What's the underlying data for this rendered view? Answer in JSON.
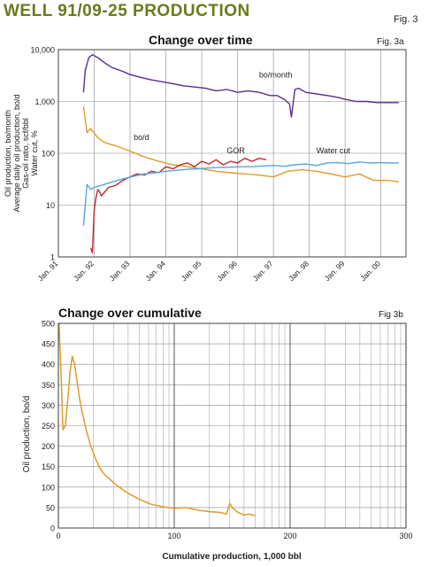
{
  "figure": {
    "title": "WELL 91/09-25 PRODUCTION",
    "fig_label": "Fig. 3",
    "colors": {
      "title": "#6b7a1c"
    }
  },
  "chart_data": [
    {
      "id": "fig3a",
      "type": "line",
      "title": "Change over time",
      "fig_label": "Fig. 3a",
      "ylabel_lines": [
        "Oil production, bo/month",
        "Average daily oil production, bo/d",
        "Gas-oil ratio, scf/bbl",
        "Water cut, %"
      ],
      "xlabel": "",
      "yscale": "log",
      "ylim": [
        1,
        10000
      ],
      "ytick_labels": [
        "1",
        "10",
        "100",
        "1,000",
        "10,000"
      ],
      "ytick_values": [
        1,
        10,
        100,
        1000,
        10000
      ],
      "xlim": [
        1991.0,
        2000.7
      ],
      "xtick_labels": [
        "Jan. 91",
        "Jan. 92",
        "Jan. 93",
        "Jan. 94",
        "Jan. 95",
        "Jan. 96",
        "Jan. 97",
        "Jan. 98",
        "Jan. 99",
        "Jan. 00"
      ],
      "xtick_values": [
        1991,
        1992,
        1993,
        1994,
        1995,
        1996,
        1997,
        1998,
        1999,
        2000
      ],
      "grid": true,
      "annotations": [
        {
          "text": "bo/month",
          "series": "bo/month",
          "x": 1996.6,
          "y": 2900
        },
        {
          "text": "bo/d",
          "series": "bo/d",
          "x": 1993.1,
          "y": 180
        },
        {
          "text": "GOR",
          "series": "GOR",
          "x": 1995.7,
          "y": 100
        },
        {
          "text": "Water cut",
          "series": "Water cut",
          "x": 1998.2,
          "y": 100
        }
      ],
      "series": [
        {
          "name": "bo/month",
          "color": "#5a2d91",
          "x": [
            1991.7,
            1991.75,
            1991.85,
            1991.95,
            1992.1,
            1992.3,
            1992.5,
            1992.8,
            1993.0,
            1993.3,
            1993.6,
            1993.9,
            1994.2,
            1994.5,
            1994.8,
            1995.1,
            1995.4,
            1995.7,
            1996.0,
            1996.3,
            1996.6,
            1996.9,
            1997.1,
            1997.3,
            1997.45,
            1997.5,
            1997.6,
            1997.7,
            1997.9,
            1998.2,
            1998.5,
            1998.8,
            1999.0,
            1999.3,
            1999.6,
            1999.9,
            2000.2,
            2000.5
          ],
          "y": [
            1500,
            4000,
            7000,
            8000,
            7000,
            5500,
            4500,
            3800,
            3300,
            2900,
            2600,
            2400,
            2200,
            2000,
            1900,
            1800,
            1600,
            1700,
            1500,
            1600,
            1500,
            1300,
            1300,
            1100,
            900,
            500,
            1700,
            1800,
            1500,
            1400,
            1300,
            1200,
            1100,
            1000,
            1000,
            950,
            950,
            950
          ]
        },
        {
          "name": "bo/d",
          "color": "#e09a2a",
          "x": [
            1991.7,
            1991.8,
            1991.9,
            1992.1,
            1992.3,
            1992.6,
            1993.0,
            1993.4,
            1993.8,
            1994.2,
            1994.6,
            1995.0,
            1995.4,
            1995.8,
            1996.2,
            1996.6,
            1997.0,
            1997.4,
            1997.8,
            1998.2,
            1998.6,
            1999.0,
            1999.4,
            1999.8,
            2000.2,
            2000.5
          ],
          "y": [
            800,
            250,
            300,
            200,
            160,
            140,
            110,
            85,
            70,
            60,
            55,
            50,
            45,
            42,
            40,
            38,
            35,
            45,
            48,
            45,
            40,
            35,
            40,
            30,
            30,
            28
          ]
        },
        {
          "name": "GOR",
          "color": "#c0282d",
          "x": [
            1991.9,
            1991.95,
            1992.0,
            1992.05,
            1992.1,
            1992.15,
            1992.2,
            1992.4,
            1992.6,
            1992.8,
            1993.0,
            1993.2,
            1993.4,
            1993.6,
            1993.8,
            1994.0,
            1994.2,
            1994.4,
            1994.6,
            1994.8,
            1995.0,
            1995.2,
            1995.4,
            1995.6,
            1995.8,
            1996.0,
            1996.2,
            1996.4,
            1996.6,
            1996.8
          ],
          "y": [
            1.5,
            1.2,
            8,
            14,
            20,
            18,
            15,
            22,
            24,
            30,
            35,
            40,
            38,
            45,
            42,
            55,
            50,
            60,
            65,
            55,
            70,
            62,
            75,
            60,
            70,
            65,
            80,
            70,
            80,
            75
          ]
        },
        {
          "name": "Water cut",
          "color": "#56a5e0",
          "x": [
            1991.7,
            1991.8,
            1991.9,
            1992.0,
            1992.2,
            1992.5,
            1992.8,
            1993.1,
            1993.4,
            1993.7,
            1994.0,
            1994.3,
            1994.6,
            1994.9,
            1995.2,
            1995.5,
            1995.8,
            1996.1,
            1996.4,
            1996.7,
            1997.0,
            1997.3,
            1997.6,
            1997.9,
            1998.2,
            1998.5,
            1998.8,
            1999.1,
            1999.4,
            1999.7,
            2000.0,
            2000.3,
            2000.5
          ],
          "y": [
            4,
            25,
            20,
            22,
            24,
            28,
            32,
            36,
            40,
            42,
            45,
            47,
            49,
            50,
            52,
            53,
            54,
            55,
            55,
            57,
            58,
            56,
            60,
            62,
            58,
            65,
            66,
            63,
            68,
            65,
            66,
            65,
            65
          ]
        }
      ]
    },
    {
      "id": "fig3b",
      "type": "line",
      "title": "Change over cumulative",
      "fig_label": "Fig 3b",
      "xlabel": "Cumulative production, 1,000 bbl",
      "ylabel": "Oil production, bo/d",
      "xlim": [
        0,
        300
      ],
      "ylim": [
        0,
        500
      ],
      "xtick_labels": [
        "0",
        "100",
        "200",
        "300"
      ],
      "xtick_values": [
        0,
        100,
        200,
        300
      ],
      "ytick_labels": [
        "0",
        "50",
        "100",
        "150",
        "200",
        "250",
        "300",
        "350",
        "400",
        "450",
        "500"
      ],
      "ytick_values": [
        0,
        50,
        100,
        150,
        200,
        250,
        300,
        350,
        400,
        450,
        500
      ],
      "grid": true,
      "series": [
        {
          "name": "",
          "color": "#e09a2a",
          "x": [
            0.5,
            2,
            4,
            6,
            8,
            10,
            12,
            14,
            16,
            18,
            20,
            24,
            28,
            32,
            36,
            40,
            45,
            50,
            55,
            60,
            70,
            80,
            90,
            100,
            110,
            120,
            130,
            140,
            145,
            148,
            150,
            155,
            160,
            165,
            170
          ],
          "y": [
            500,
            400,
            240,
            250,
            310,
            380,
            420,
            400,
            360,
            320,
            290,
            240,
            200,
            170,
            145,
            130,
            118,
            105,
            95,
            85,
            70,
            58,
            52,
            48,
            50,
            44,
            40,
            38,
            34,
            60,
            50,
            38,
            32,
            34,
            30
          ]
        }
      ]
    }
  ]
}
